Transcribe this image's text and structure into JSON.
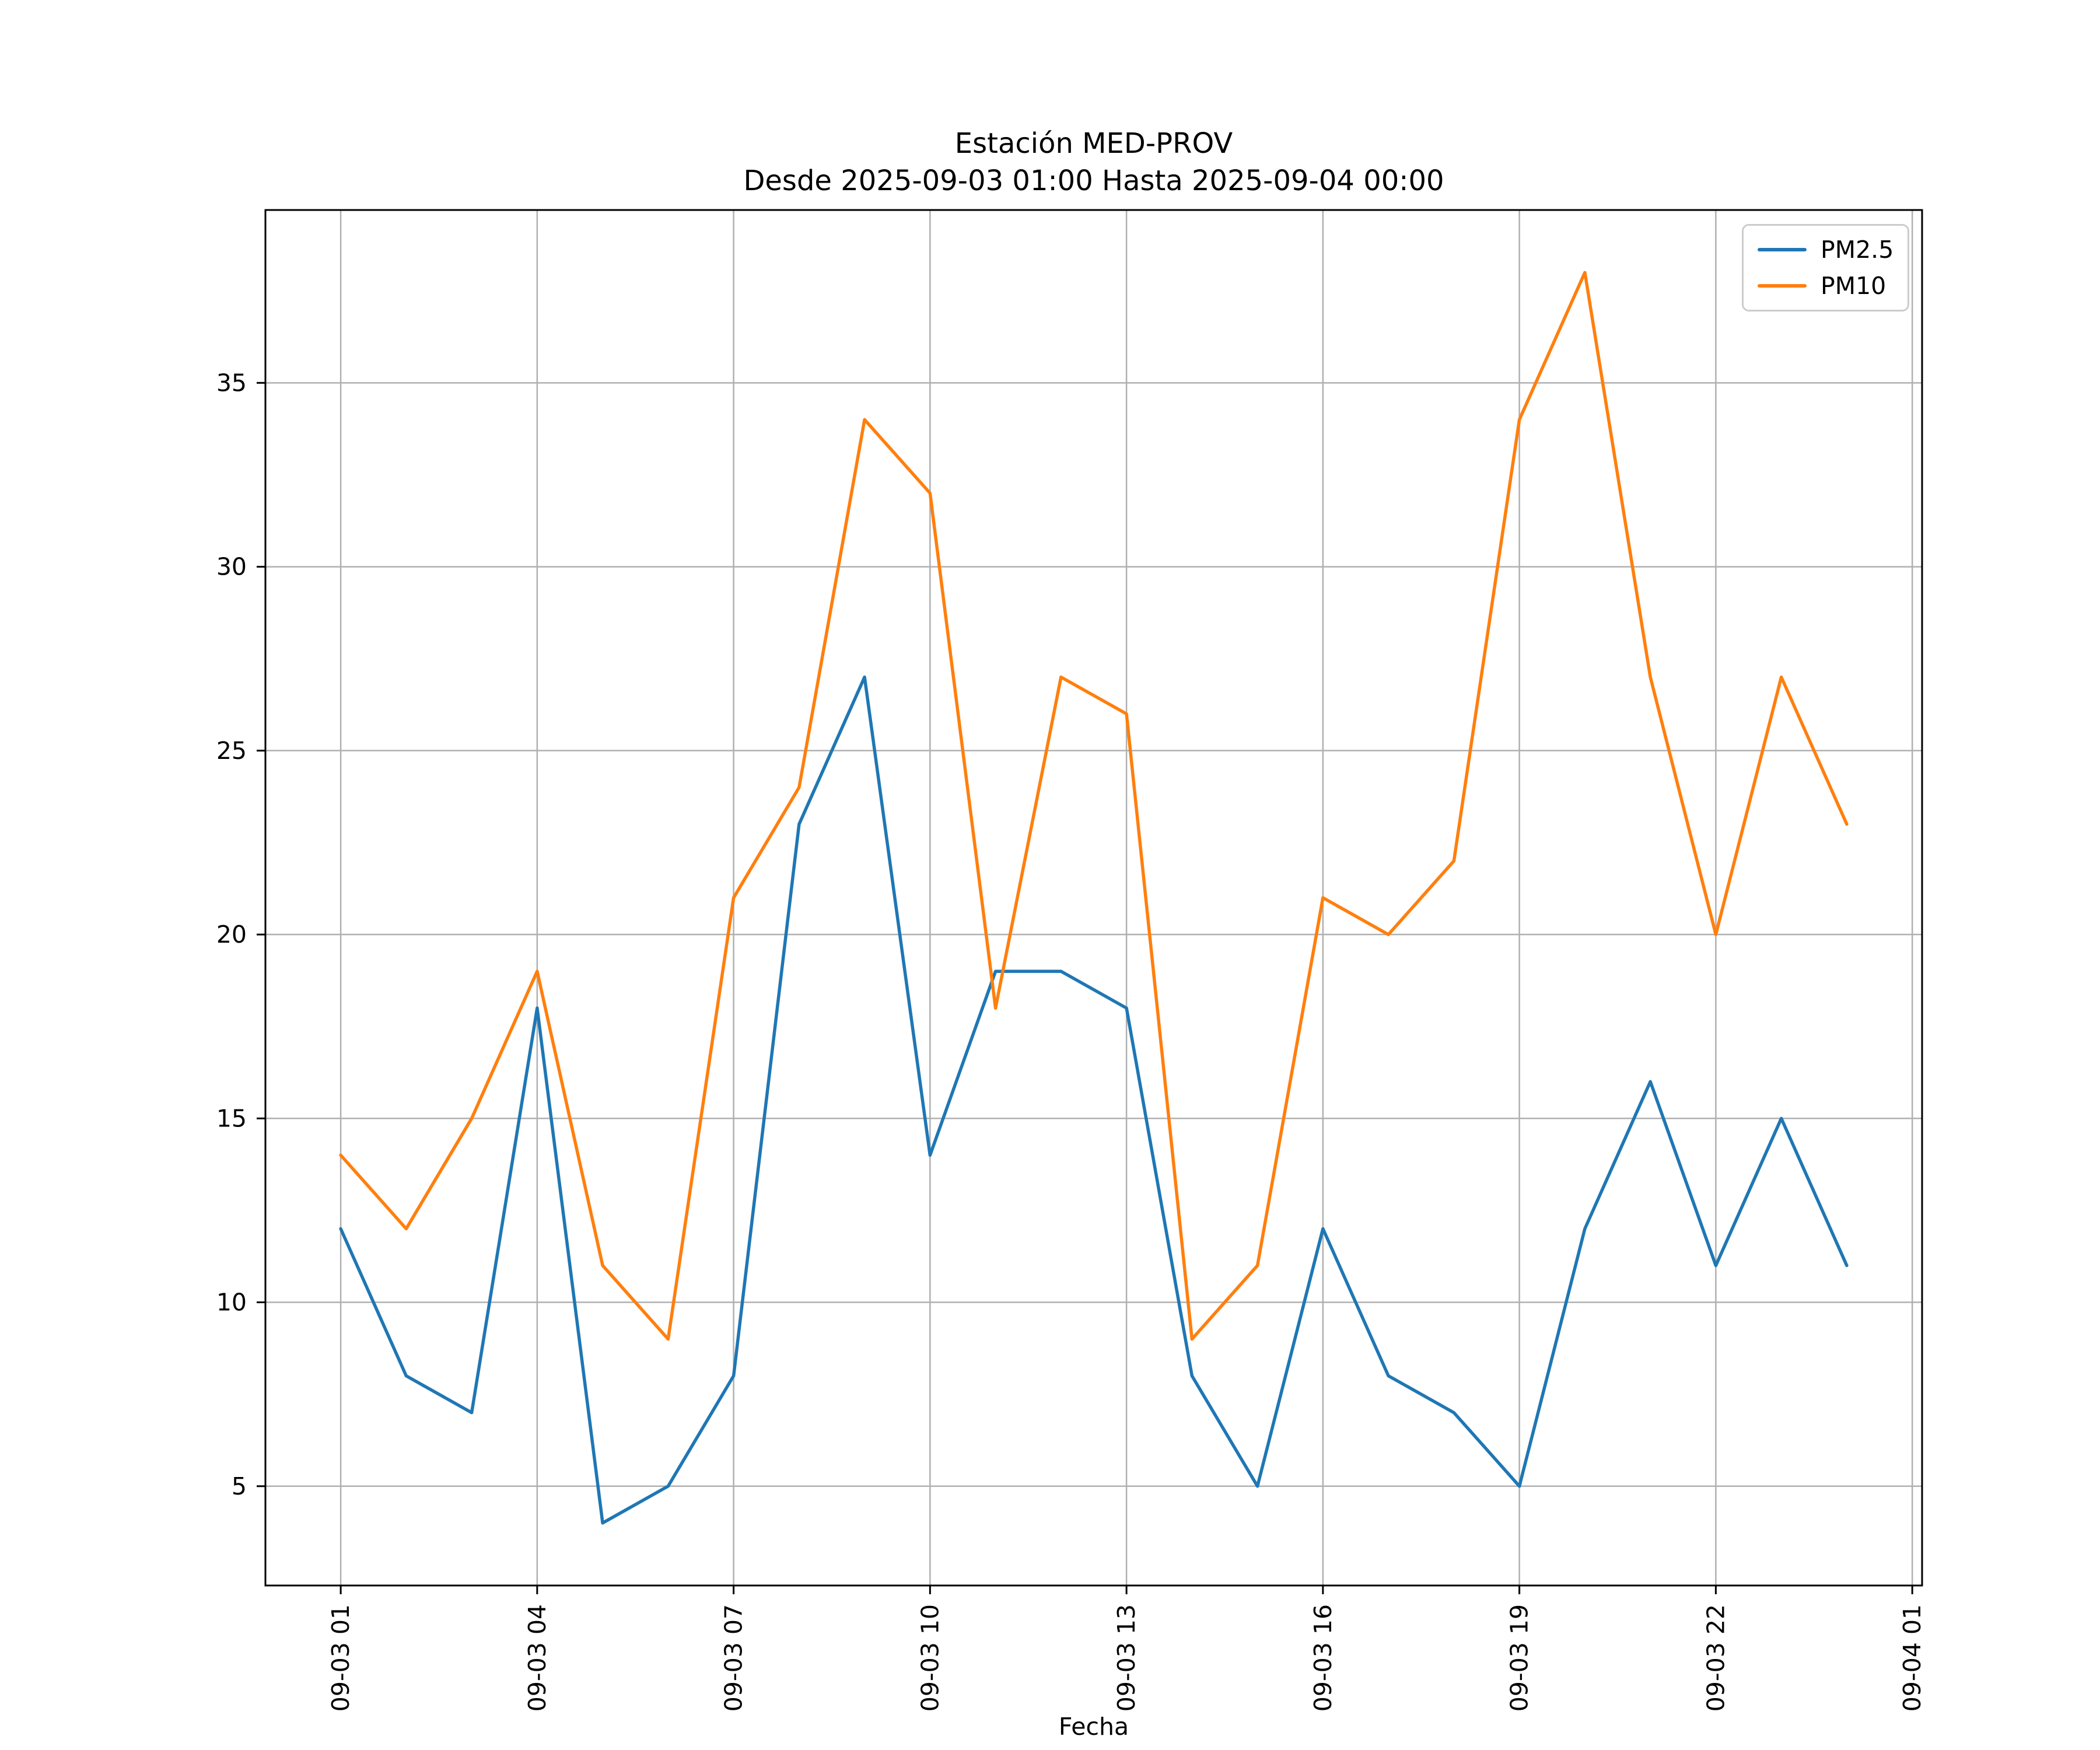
{
  "figure": {
    "background_color": "#ffffff"
  },
  "chart_data": {
    "type": "line",
    "title": "Estación MED-PROV",
    "subtitle": "Desde 2025-09-03 01:00 Hasta 2025-09-04 00:00",
    "xlabel": "Fecha",
    "ylabel": "",
    "grid": true,
    "grid_color": "#b0b0b0",
    "legend_position": "upper right",
    "x_hours": [
      1,
      2,
      3,
      4,
      5,
      6,
      7,
      8,
      9,
      10,
      11,
      12,
      13,
      14,
      15,
      16,
      17,
      18,
      19,
      20,
      21,
      22,
      23,
      24
    ],
    "series": [
      {
        "name": "PM2.5",
        "color": "#1f77b4",
        "values": [
          12,
          8,
          7,
          18,
          4,
          5,
          8,
          23,
          27,
          14,
          19,
          19,
          18,
          8,
          5,
          12,
          8,
          7,
          5,
          12,
          16,
          11,
          15,
          11
        ]
      },
      {
        "name": "PM10",
        "color": "#ff7f0e",
        "values": [
          14,
          12,
          15,
          19,
          11,
          9,
          21,
          24,
          34,
          32,
          18,
          27,
          26,
          9,
          11,
          21,
          20,
          22,
          34,
          38,
          27,
          20,
          27,
          23
        ]
      }
    ],
    "xticks": {
      "positions": [
        1,
        4,
        7,
        10,
        13,
        16,
        19,
        22,
        25
      ],
      "labels": [
        "09-03 01",
        "09-03 04",
        "09-03 07",
        "09-03 10",
        "09-03 13",
        "09-03 16",
        "09-03 19",
        "09-03 22",
        "09-04 01"
      ]
    },
    "yticks": [
      5,
      10,
      15,
      20,
      25,
      30,
      35
    ],
    "xlim": [
      -0.15,
      25.15
    ],
    "ylim": [
      2.3,
      39.7
    ]
  }
}
